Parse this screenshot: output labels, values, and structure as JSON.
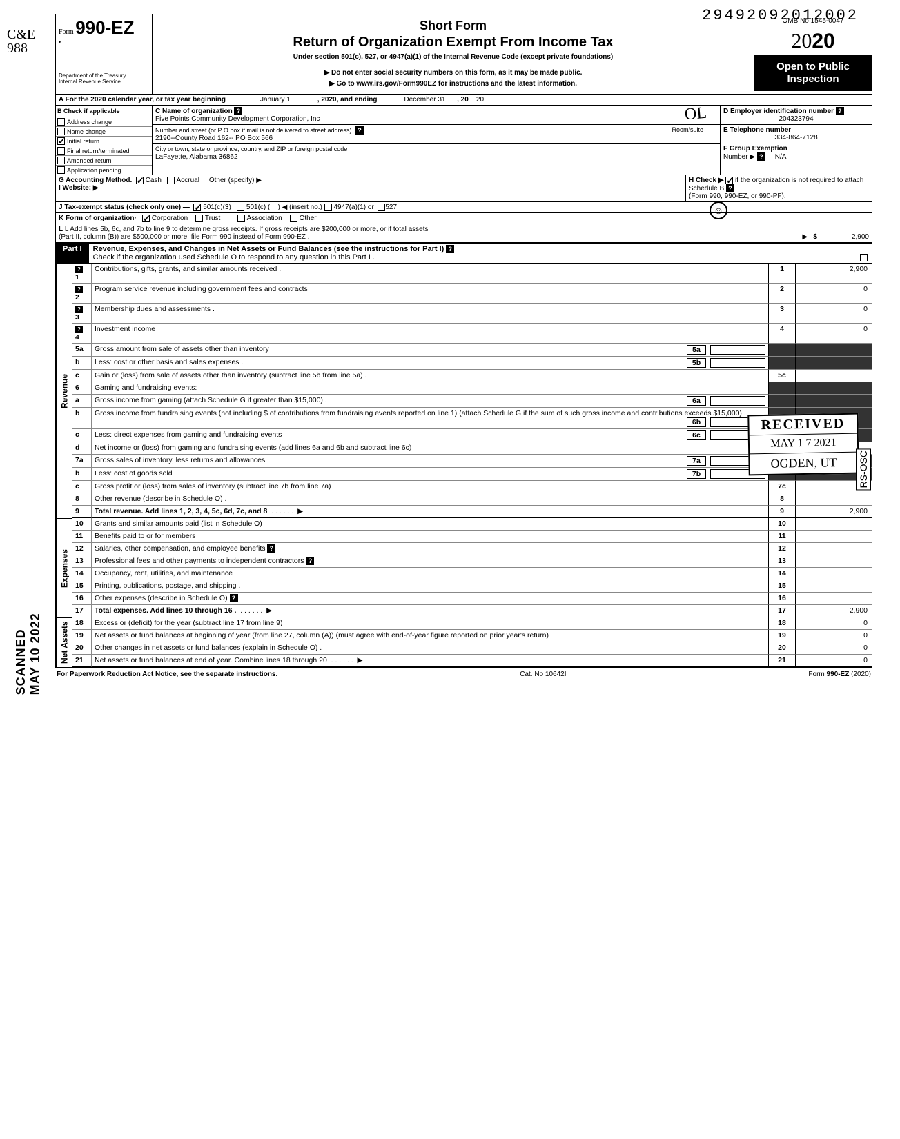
{
  "top_number": "29492092012002",
  "vert_left": "C&E\n988",
  "vert_scanned": "SCANNED MAY 10 2022",
  "header": {
    "form_prefix": "Form",
    "form_number": "990-EZ",
    "dept1": "Department of the Treasury",
    "dept2": "Internal Revenue Service",
    "title1": "Short Form",
    "title2": "Return of Organization Exempt From Income Tax",
    "subtitle": "Under section 501(c), 527, or 4947(a)(1) of the Internal Revenue Code (except private foundations)",
    "arrow1": "▶ Do not enter social security numbers on this form, as it may be made public.",
    "arrow2": "▶ Go to www.irs.gov/Form990EZ for instructions and the latest information.",
    "omb": "OMB No 1545-0047",
    "year_prefix": "20",
    "year_bold": "20",
    "open1": "Open to Public",
    "open2": "Inspection"
  },
  "row_a": {
    "label": "A For the 2020 calendar year, or tax year beginning",
    "mid1": "January 1",
    "mid2": ", 2020, and ending",
    "end1": "December 31",
    "end2": ", 20",
    "end3": "20"
  },
  "col_b": {
    "header": "B Check if applicable",
    "items": [
      "Address change",
      "Name change",
      "Initial return",
      "Final return/terminated",
      "Amended return",
      "Application pending"
    ],
    "checked_index": 2
  },
  "col_c": {
    "c_label": "C Name of organization",
    "c_val": "Five Points Community Development Corporation, Inc",
    "addr_label": "Number and street (or P O  box if mail is not delivered to street address)",
    "room_label": "Room/suite",
    "addr_val": "2190--County Road 162-- PO Box 566",
    "city_label": "City or town, state or province, country, and ZIP or foreign postal code",
    "city_val": "LaFayette, Alabama 36862"
  },
  "col_d": {
    "d_label": "D Employer identification number",
    "d_val": "204323794",
    "e_label": "E Telephone number",
    "e_val": "334-864-7128",
    "f_label": "F Group Exemption",
    "f_label2": "Number ▶",
    "f_val": "N/A"
  },
  "row_g": {
    "g_label": "G Accounting Method.",
    "cash": "Cash",
    "accrual": "Accrual",
    "other": "Other (specify) ▶",
    "i_label": "I  Website: ▶",
    "h_label": "H Check ▶",
    "h_text": "if the organization is not required to attach Schedule B",
    "h_text2": "(Form 990, 990-EZ, or 990-PF)."
  },
  "row_j": {
    "label": "J Tax-exempt status (check only one) —",
    "opt1": "501(c)(3)",
    "opt2": "501(c) (",
    "opt2b": ") ◀ (insert no.)",
    "opt3": "4947(a)(1) or",
    "opt4": "527"
  },
  "row_k": {
    "label": "K Form of organization·",
    "opt1": "Corporation",
    "opt2": "Trust",
    "opt3": "Association",
    "opt4": "Other"
  },
  "row_l": {
    "text1": "L Add lines 5b, 6c, and 7b to line 9 to determine gross receipts. If gross receipts are $200,000 or more, or if total assets",
    "text2": "(Part II, column (B)) are $500,000 or more, file Form 990 instead of Form 990-EZ .",
    "arrow": "▶",
    "dollar": "$",
    "val": "2,900"
  },
  "part1": {
    "label": "Part I",
    "title": "Revenue, Expenses, and Changes in Net Assets or Fund Balances (see the instructions for Part I)",
    "sub": "Check if the organization used Schedule O to respond to any question in this Part I ."
  },
  "sections": {
    "revenue_label": "Revenue",
    "expenses_label": "Expenses",
    "netassets_label": "Net Assets"
  },
  "lines": [
    {
      "n": "1",
      "d": "Contributions, gifts, grants, and similar amounts received .",
      "r": "1",
      "v": "2,900",
      "q": true
    },
    {
      "n": "2",
      "d": "Program service revenue including government fees and contracts",
      "r": "2",
      "v": "0",
      "q": true
    },
    {
      "n": "3",
      "d": "Membership dues and assessments .",
      "r": "3",
      "v": "0",
      "q": true
    },
    {
      "n": "4",
      "d": "Investment income",
      "r": "4",
      "v": "0",
      "q": true
    },
    {
      "n": "5a",
      "d": "Gross amount from sale of assets other than inventory",
      "sub": "5a"
    },
    {
      "n": "b",
      "d": "Less: cost or other basis and sales expenses .",
      "sub": "5b"
    },
    {
      "n": "c",
      "d": "Gain or (loss) from sale of assets other than inventory (subtract line 5b from line 5a)  .",
      "r": "5c",
      "v": ""
    },
    {
      "n": "6",
      "d": "Gaming and fundraising events:"
    },
    {
      "n": "a",
      "d": "Gross income from gaming (attach Schedule G if greater than $15,000) .",
      "sub": "6a"
    },
    {
      "n": "b",
      "d": "Gross income from fundraising events (not including  $                                           of contributions from fundraising events reported on line 1) (attach Schedule G if the sum of such gross income and contributions exceeds $15,000) .",
      "sub": "6b"
    },
    {
      "n": "c",
      "d": "Less: direct expenses from gaming and fundraising events",
      "sub": "6c"
    },
    {
      "n": "d",
      "d": "Net income or (loss) from gaming and fundraising events (add lines 6a and 6b and subtract line 6c)",
      "r": "6d",
      "v": ""
    },
    {
      "n": "7a",
      "d": "Gross sales of inventory, less returns and allowances",
      "sub": "7a"
    },
    {
      "n": "b",
      "d": "Less: cost of goods sold",
      "sub": "7b"
    },
    {
      "n": "c",
      "d": "Gross profit or (loss) from sales of inventory (subtract line 7b from line 7a)",
      "r": "7c",
      "v": ""
    },
    {
      "n": "8",
      "d": "Other revenue (describe in Schedule O) .",
      "r": "8",
      "v": ""
    },
    {
      "n": "9",
      "d": "Total revenue. Add lines 1, 2, 3, 4, 5c, 6d, 7c, and 8",
      "r": "9",
      "v": "2,900",
      "bold": true,
      "arrow": true
    },
    {
      "n": "10",
      "d": "Grants and similar amounts paid (list in Schedule O)",
      "r": "10",
      "v": ""
    },
    {
      "n": "11",
      "d": "Benefits paid to or for members",
      "r": "11",
      "v": ""
    },
    {
      "n": "12",
      "d": "Salaries, other compensation, and employee benefits",
      "r": "12",
      "v": "",
      "qr": true
    },
    {
      "n": "13",
      "d": "Professional fees and other payments to independent contractors",
      "r": "13",
      "v": "",
      "qr": true
    },
    {
      "n": "14",
      "d": "Occupancy, rent, utilities, and maintenance",
      "r": "14",
      "v": ""
    },
    {
      "n": "15",
      "d": "Printing, publications, postage, and shipping .",
      "r": "15",
      "v": ""
    },
    {
      "n": "16",
      "d": "Other expenses (describe in Schedule O)",
      "r": "16",
      "v": "",
      "qr": true
    },
    {
      "n": "17",
      "d": "Total expenses. Add lines 10 through 16 .",
      "r": "17",
      "v": "2,900",
      "bold": true,
      "arrow": true
    },
    {
      "n": "18",
      "d": "Excess or (deficit) for the year (subtract line 17 from line 9)",
      "r": "18",
      "v": "0"
    },
    {
      "n": "19",
      "d": "Net assets or fund balances at beginning of year (from line 27, column (A)) (must agree with end-of-year figure reported on prior year's return)",
      "r": "19",
      "v": "0"
    },
    {
      "n": "20",
      "d": "Other changes in net assets or fund balances (explain in Schedule O) .",
      "r": "20",
      "v": "0"
    },
    {
      "n": "21",
      "d": "Net assets or fund balances at end of year. Combine lines 18 through 20",
      "r": "21",
      "v": "0",
      "arrow": true
    }
  ],
  "footer": {
    "left": "For Paperwork Reduction Act Notice, see the separate instructions.",
    "mid": "Cat. No 10642I",
    "right": "Form 990-EZ (2020)"
  },
  "stamp": {
    "r1": "RECEIVED",
    "r2": "MAY 1 7 2021",
    "r3": "OGDEN, UT"
  },
  "rs_osc": "RS-OSC"
}
